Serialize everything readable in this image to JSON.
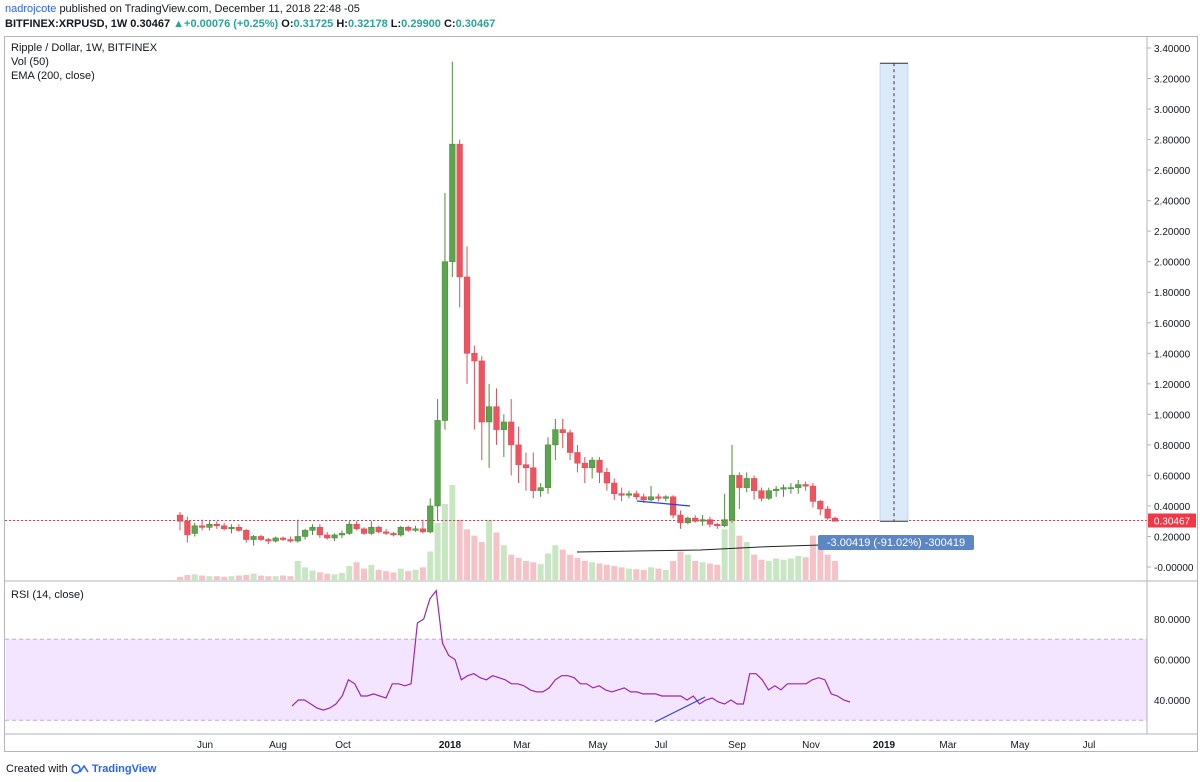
{
  "header": {
    "author": "nadrojcote",
    "published_text": "published on TradingView.com, December 11, 2018 22:48 -05",
    "symbol": "BITFINEX:XRPUSD, 1W",
    "last": "0.30467",
    "change_arrow": "▲",
    "change": "+0.00076 (+0.25%)",
    "o_label": "O:",
    "o_value": "0.31725",
    "h_label": "H:",
    "h_value": "0.32178",
    "l_label": "L:",
    "l_value": "0.29900",
    "c_label": "C:",
    "c_value": "0.30467"
  },
  "legend": {
    "title": "Ripple / Dollar, 1W, BITFINEX",
    "vol": "Vol (50)",
    "ema": "EMA (200, close)",
    "rsi": "RSI (14, close)"
  },
  "footer": {
    "created_with": "Created with",
    "brand": "TradingView"
  },
  "colors": {
    "up": "#53b987",
    "up_body": "#4f9a3f",
    "down": "#eb4d5c",
    "vol_up": "#c9e6c3",
    "vol_down": "#f5c3c7",
    "rsi_line": "#9c27b0",
    "rsi_band": "#f3e5ff",
    "price_line": "#f23645",
    "measure": "#5c86c4"
  },
  "chart_data": {
    "type": "candlestick",
    "title": "Ripple / Dollar, 1W, BITFINEX",
    "x_ticks": [
      "Jun",
      "Aug",
      "Oct",
      "2018",
      "Mar",
      "May",
      "Jul",
      "Sep",
      "Nov",
      "2019",
      "Mar",
      "May",
      "Jul"
    ],
    "y_ticks": [
      "3.40000",
      "3.20000",
      "3.00000",
      "2.80000",
      "2.60000",
      "2.40000",
      "2.20000",
      "2.00000",
      "1.80000",
      "1.60000",
      "1.40000",
      "1.20000",
      "1.00000",
      "0.80000",
      "0.60000",
      "0.40000",
      "0.20000",
      "-0.00000"
    ],
    "ylim": [
      -0.02,
      3.45
    ],
    "last_price": 0.30467,
    "last_price_label": "0.30467",
    "ohlc": [
      [
        0.34,
        0.36,
        0.24,
        0.3
      ],
      [
        0.3,
        0.33,
        0.16,
        0.21
      ],
      [
        0.22,
        0.29,
        0.2,
        0.27
      ],
      [
        0.27,
        0.31,
        0.24,
        0.26
      ],
      [
        0.26,
        0.3,
        0.24,
        0.28
      ],
      [
        0.28,
        0.3,
        0.25,
        0.27
      ],
      [
        0.27,
        0.29,
        0.24,
        0.25
      ],
      [
        0.25,
        0.28,
        0.22,
        0.26
      ],
      [
        0.26,
        0.28,
        0.23,
        0.24
      ],
      [
        0.24,
        0.25,
        0.16,
        0.18
      ],
      [
        0.18,
        0.21,
        0.14,
        0.2
      ],
      [
        0.2,
        0.21,
        0.17,
        0.18
      ],
      [
        0.18,
        0.19,
        0.15,
        0.17
      ],
      [
        0.17,
        0.2,
        0.16,
        0.19
      ],
      [
        0.19,
        0.2,
        0.17,
        0.18
      ],
      [
        0.18,
        0.2,
        0.16,
        0.17
      ],
      [
        0.17,
        0.31,
        0.16,
        0.2
      ],
      [
        0.2,
        0.25,
        0.18,
        0.24
      ],
      [
        0.24,
        0.28,
        0.21,
        0.26
      ],
      [
        0.26,
        0.28,
        0.19,
        0.21
      ],
      [
        0.21,
        0.23,
        0.18,
        0.19
      ],
      [
        0.19,
        0.22,
        0.17,
        0.21
      ],
      [
        0.21,
        0.24,
        0.19,
        0.22
      ],
      [
        0.22,
        0.3,
        0.21,
        0.28
      ],
      [
        0.28,
        0.3,
        0.24,
        0.25
      ],
      [
        0.25,
        0.26,
        0.21,
        0.22
      ],
      [
        0.22,
        0.3,
        0.21,
        0.26
      ],
      [
        0.26,
        0.27,
        0.22,
        0.23
      ],
      [
        0.23,
        0.25,
        0.21,
        0.22
      ],
      [
        0.22,
        0.23,
        0.2,
        0.21
      ],
      [
        0.21,
        0.27,
        0.2,
        0.26
      ],
      [
        0.26,
        0.27,
        0.23,
        0.24
      ],
      [
        0.24,
        0.27,
        0.23,
        0.25
      ],
      [
        0.25,
        0.31,
        0.22,
        0.23
      ],
      [
        0.23,
        0.45,
        0.22,
        0.4
      ],
      [
        0.4,
        1.1,
        0.3,
        0.96
      ],
      [
        0.96,
        2.45,
        0.9,
        2.0
      ],
      [
        2.0,
        3.31,
        1.9,
        2.77
      ],
      [
        2.77,
        2.8,
        1.7,
        1.9
      ],
      [
        1.9,
        2.1,
        1.2,
        1.4
      ],
      [
        1.4,
        1.45,
        0.9,
        1.35
      ],
      [
        1.35,
        1.38,
        0.7,
        0.95
      ],
      [
        0.95,
        1.2,
        0.65,
        1.05
      ],
      [
        1.05,
        1.17,
        0.8,
        0.9
      ],
      [
        0.9,
        1.0,
        0.72,
        0.95
      ],
      [
        0.95,
        1.1,
        0.6,
        0.8
      ],
      [
        0.8,
        0.92,
        0.55,
        0.67
      ],
      [
        0.67,
        0.75,
        0.5,
        0.65
      ],
      [
        0.65,
        0.75,
        0.45,
        0.5
      ],
      [
        0.5,
        0.55,
        0.46,
        0.52
      ],
      [
        0.52,
        0.85,
        0.48,
        0.8
      ],
      [
        0.8,
        0.97,
        0.7,
        0.9
      ],
      [
        0.9,
        0.97,
        0.78,
        0.88
      ],
      [
        0.88,
        0.9,
        0.7,
        0.75
      ],
      [
        0.75,
        0.8,
        0.62,
        0.68
      ],
      [
        0.68,
        0.72,
        0.55,
        0.65
      ],
      [
        0.65,
        0.72,
        0.58,
        0.7
      ],
      [
        0.7,
        0.72,
        0.55,
        0.62
      ],
      [
        0.62,
        0.65,
        0.5,
        0.55
      ],
      [
        0.55,
        0.58,
        0.44,
        0.48
      ],
      [
        0.48,
        0.52,
        0.43,
        0.47
      ],
      [
        0.47,
        0.5,
        0.45,
        0.48
      ],
      [
        0.48,
        0.5,
        0.44,
        0.46
      ],
      [
        0.46,
        0.48,
        0.42,
        0.44
      ],
      [
        0.44,
        0.53,
        0.43,
        0.46
      ],
      [
        0.46,
        0.48,
        0.43,
        0.45
      ],
      [
        0.45,
        0.47,
        0.43,
        0.46
      ],
      [
        0.46,
        0.47,
        0.32,
        0.34
      ],
      [
        0.34,
        0.37,
        0.25,
        0.29
      ],
      [
        0.29,
        0.33,
        0.28,
        0.32
      ],
      [
        0.32,
        0.34,
        0.29,
        0.3
      ],
      [
        0.3,
        0.34,
        0.27,
        0.31
      ],
      [
        0.31,
        0.33,
        0.26,
        0.28
      ],
      [
        0.28,
        0.29,
        0.25,
        0.27
      ],
      [
        0.27,
        0.48,
        0.26,
        0.31
      ],
      [
        0.31,
        0.8,
        0.29,
        0.6
      ],
      [
        0.6,
        0.62,
        0.38,
        0.52
      ],
      [
        0.52,
        0.62,
        0.49,
        0.58
      ],
      [
        0.58,
        0.6,
        0.44,
        0.5
      ],
      [
        0.5,
        0.52,
        0.43,
        0.45
      ],
      [
        0.45,
        0.52,
        0.44,
        0.5
      ],
      [
        0.5,
        0.53,
        0.46,
        0.51
      ],
      [
        0.51,
        0.54,
        0.46,
        0.52
      ],
      [
        0.52,
        0.55,
        0.48,
        0.52
      ],
      [
        0.52,
        0.57,
        0.48,
        0.54
      ],
      [
        0.54,
        0.56,
        0.5,
        0.53
      ],
      [
        0.53,
        0.55,
        0.39,
        0.43
      ],
      [
        0.43,
        0.44,
        0.34,
        0.38
      ],
      [
        0.38,
        0.4,
        0.31,
        0.32
      ],
      [
        0.32,
        0.33,
        0.3,
        0.3
      ]
    ],
    "volume_scale_note": "",
    "volumes": [
      5,
      8,
      9,
      7,
      6,
      6,
      5,
      6,
      7,
      8,
      10,
      7,
      6,
      6,
      7,
      6,
      30,
      20,
      15,
      12,
      10,
      9,
      11,
      22,
      28,
      18,
      24,
      16,
      14,
      12,
      18,
      14,
      16,
      20,
      45,
      90,
      120,
      150,
      95,
      80,
      70,
      60,
      95,
      75,
      55,
      40,
      35,
      30,
      28,
      25,
      42,
      55,
      48,
      40,
      35,
      30,
      28,
      26,
      24,
      22,
      20,
      18,
      17,
      16,
      20,
      18,
      16,
      30,
      45,
      40,
      30,
      28,
      26,
      24,
      80,
      100,
      70,
      60,
      40,
      32,
      30,
      34,
      32,
      34,
      38,
      36,
      70,
      55,
      40,
      30
    ],
    "rsi": {
      "label": "RSI (14, close)",
      "ticks": [
        "80.0000",
        "60.0000",
        "40.0000"
      ],
      "ylim": [
        24,
        97
      ],
      "upper": 70,
      "lower": 30,
      "series": [
        37,
        40,
        40,
        38,
        36,
        35,
        36,
        38,
        42,
        50,
        48,
        42,
        42,
        43,
        42,
        41,
        48,
        48,
        47,
        48,
        78,
        80,
        90,
        94,
        68,
        62,
        60,
        50,
        52,
        53,
        51,
        50,
        52,
        51,
        50,
        48,
        48,
        47,
        45,
        44,
        44,
        46,
        50,
        52,
        52,
        51,
        48,
        48,
        46,
        47,
        45,
        44,
        45,
        46,
        44,
        44,
        43,
        43,
        43,
        42,
        42,
        42,
        42,
        40,
        42,
        38,
        40,
        41,
        39,
        38,
        40,
        38,
        38,
        53,
        53,
        50,
        45,
        47,
        45,
        48,
        48,
        48,
        48,
        50,
        51,
        50,
        43,
        42,
        40,
        39
      ]
    },
    "measure": {
      "label": "-3.00419 (-91.02%) -300419"
    }
  }
}
